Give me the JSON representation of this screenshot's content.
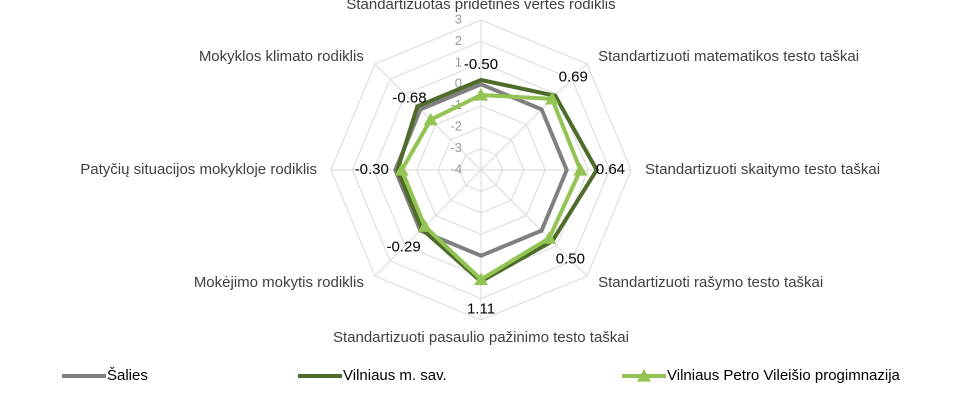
{
  "chart_data": {
    "type": "radar",
    "categories": [
      "Standartizuotas pridėtinės vertės rodiklis",
      "Standartizuoti matematikos testo taškai",
      "Standartizuoti skaitymo testo taškai",
      "Standartizuoti rašymo testo taškai",
      "Standartizuoti pasaulio pažinimo testo taškai",
      "Mokėjimo mokytis rodiklis",
      "Patyčių situacijos mokykloje rodiklis",
      "Mokyklos klimato rodiklis"
    ],
    "series": [
      {
        "name": "Šalies",
        "color": "#808080",
        "values": [
          0,
          0,
          0,
          0,
          0,
          0,
          0,
          0
        ]
      },
      {
        "name": "Vilniaus m. sav.",
        "color": "#4e6b2a",
        "values": [
          0.2,
          0.9,
          1.4,
          0.7,
          1.2,
          -0.1,
          -0.1,
          0.2
        ]
      },
      {
        "name": "Vilniaus Petro Vileišio progimnazija",
        "color": "#92c353",
        "marker": "triangle",
        "values": [
          -0.5,
          0.69,
          0.64,
          0.5,
          1.11,
          -0.29,
          -0.3,
          -0.68
        ],
        "value_labels": [
          "-0.50",
          "0.69",
          "0.64",
          "0.50",
          "1.11",
          "-0.29",
          "-0.30",
          "-0.68"
        ]
      }
    ],
    "ylim": [
      -4,
      3
    ],
    "yticks": [
      -4,
      -3,
      -2,
      -1,
      0,
      1,
      2,
      3
    ],
    "grid": true,
    "legend": "bottom"
  }
}
